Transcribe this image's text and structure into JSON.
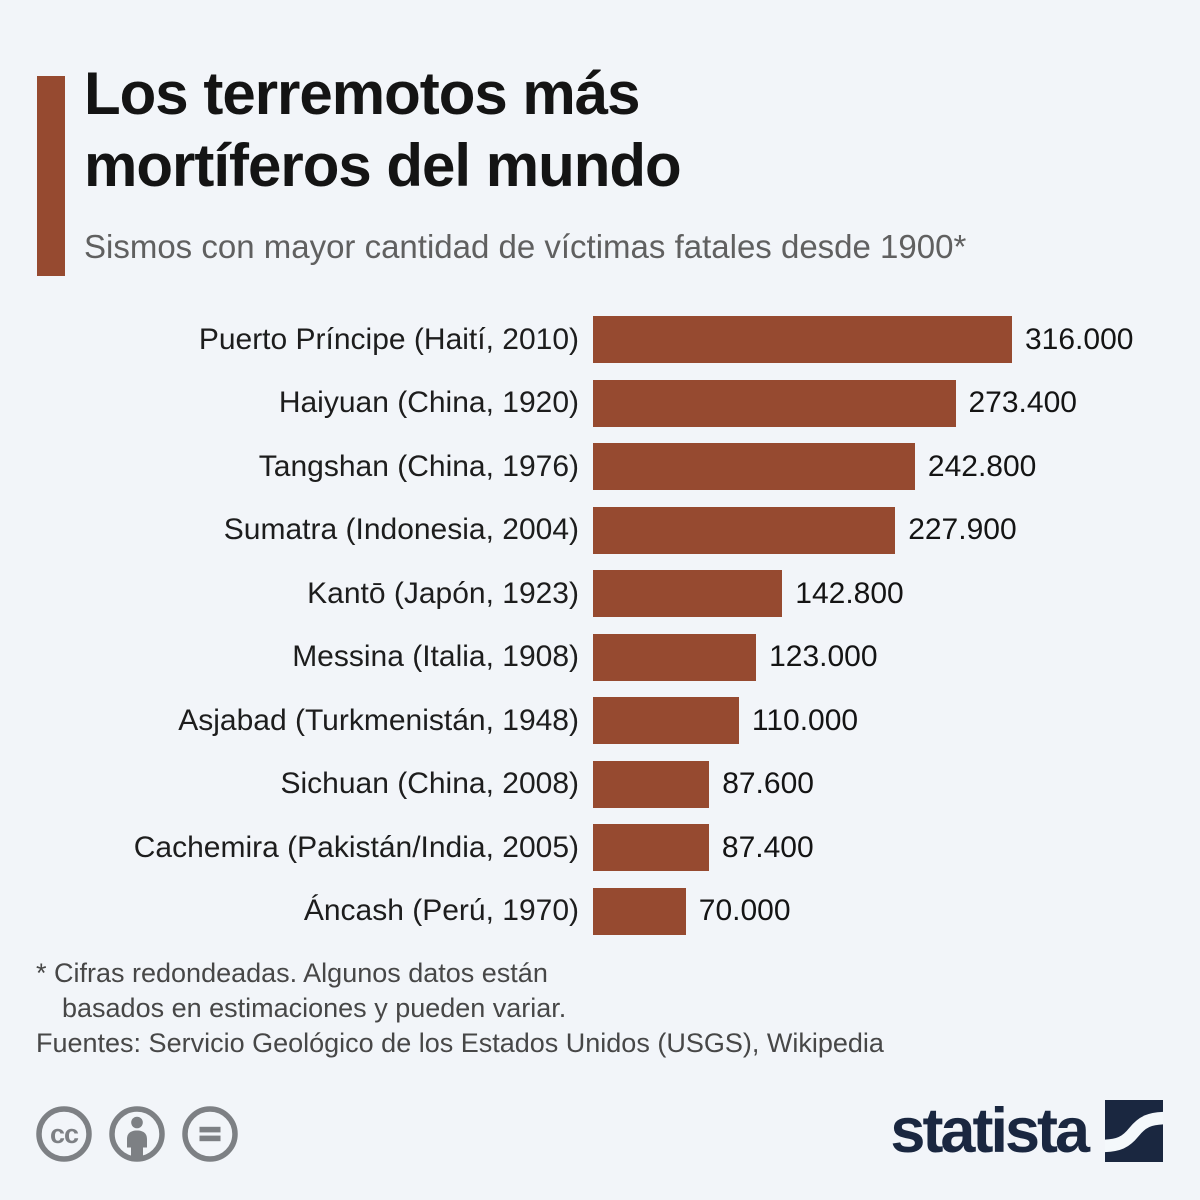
{
  "header": {
    "title_line1": "Los terremotos más",
    "title_line2": "mortíferos del mundo",
    "subtitle": "Sismos con mayor cantidad de víctimas fatales desde 1900*"
  },
  "chart_data": {
    "type": "bar",
    "orientation": "horizontal",
    "title": "Los terremotos más mortíferos del mundo",
    "subtitle": "Sismos con mayor cantidad de víctimas fatales desde 1900*",
    "categories": [
      "Puerto Príncipe (Haití, 2010)",
      "Haiyuan (China, 1920)",
      "Tangshan (China, 1976)",
      "Sumatra (Indonesia, 2004)",
      "Kantō (Japón, 1923)",
      "Messina (Italia, 1908)",
      "Asjabad (Turkmenistán, 1948)",
      "Sichuan (China, 2008)",
      "Cachemira (Pakistán/India, 2005)",
      "Áncash (Perú, 1970)"
    ],
    "values": [
      316000,
      273400,
      242800,
      227900,
      142800,
      123000,
      110000,
      87600,
      87400,
      70000
    ],
    "value_labels": [
      "316.000",
      "273.400",
      "242.800",
      "227.900",
      "142.800",
      "123.000",
      "110.000",
      "87.600",
      "87.400",
      "70.000"
    ],
    "xlim": [
      0,
      316000
    ],
    "grid": false,
    "legend": false,
    "bar_color": "#964a30"
  },
  "footnote": {
    "asterisk_line1": "* Cifras redondeadas. Algunos datos están",
    "asterisk_line2": "basados en estimaciones y pueden variar.",
    "sources": "Fuentes: Servicio Geológico de los Estados Unidos (USGS), Wikipedia"
  },
  "branding": {
    "logo_text": "statista",
    "license_icons": [
      "cc-icon",
      "attribution-icon",
      "equals-icon"
    ]
  },
  "colors": {
    "background": "#f2f5f9",
    "bar": "#964a30",
    "accent_bar": "#964a30",
    "title_text": "#141414",
    "subtitle_text": "#606060",
    "label_text": "#1d1d1d",
    "footnote_text": "#474747",
    "license_gray": "#7d8084",
    "logo_navy": "#1a2740"
  }
}
